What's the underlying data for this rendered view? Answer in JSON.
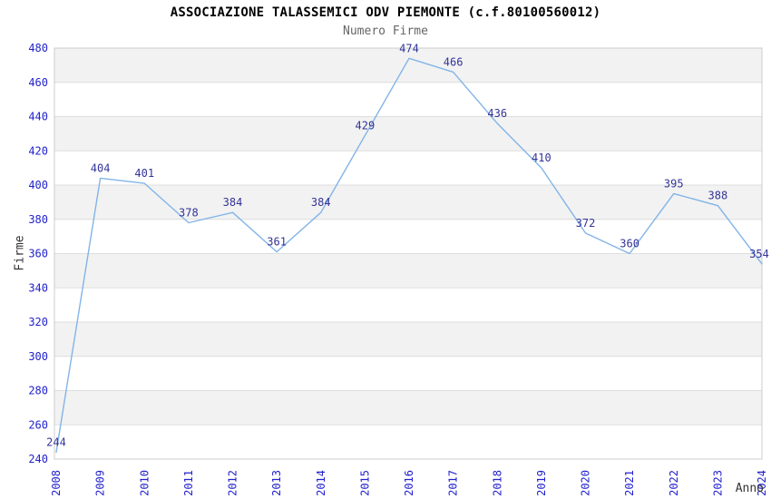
{
  "chart_data": {
    "type": "line",
    "title": "ASSOCIAZIONE TALASSEMICI ODV PIEMONTE (c.f.80100560012)",
    "subtitle": "Numero Firme",
    "xlabel": "Anno",
    "ylabel": "Firme",
    "categories": [
      "2008",
      "2009",
      "2010",
      "2011",
      "2012",
      "2013",
      "2014",
      "2015",
      "2016",
      "2017",
      "2018",
      "2019",
      "2020",
      "2021",
      "2022",
      "2023",
      "2024"
    ],
    "series": [
      {
        "name": "Numero Firme",
        "values": [
          244,
          404,
          401,
          378,
          384,
          361,
          384,
          429,
          474,
          466,
          436,
          410,
          372,
          360,
          395,
          388,
          354
        ]
      }
    ],
    "ylim": [
      240,
      480
    ],
    "ytick_step": 20,
    "yticks": [
      240,
      260,
      280,
      300,
      320,
      340,
      360,
      380,
      400,
      420,
      440,
      460,
      480
    ],
    "grid": true,
    "grid_bands": "alternating-horizontal, gray band 460-480 then every other 20-unit band below",
    "legend_position": "none",
    "data_labels": "above each point",
    "colors": {
      "line": "#82B4E8",
      "data_label": "#333399",
      "tick_label": "#2222CC",
      "band_gray": "#F2F2F2",
      "band_white": "#FFFFFF",
      "grid_line": "#DDDDDD",
      "plot_border": "#CCCCCC",
      "title": "#000000",
      "subtitle": "#666666",
      "axis_title": "#333333",
      "background": "#FFFFFF"
    }
  }
}
